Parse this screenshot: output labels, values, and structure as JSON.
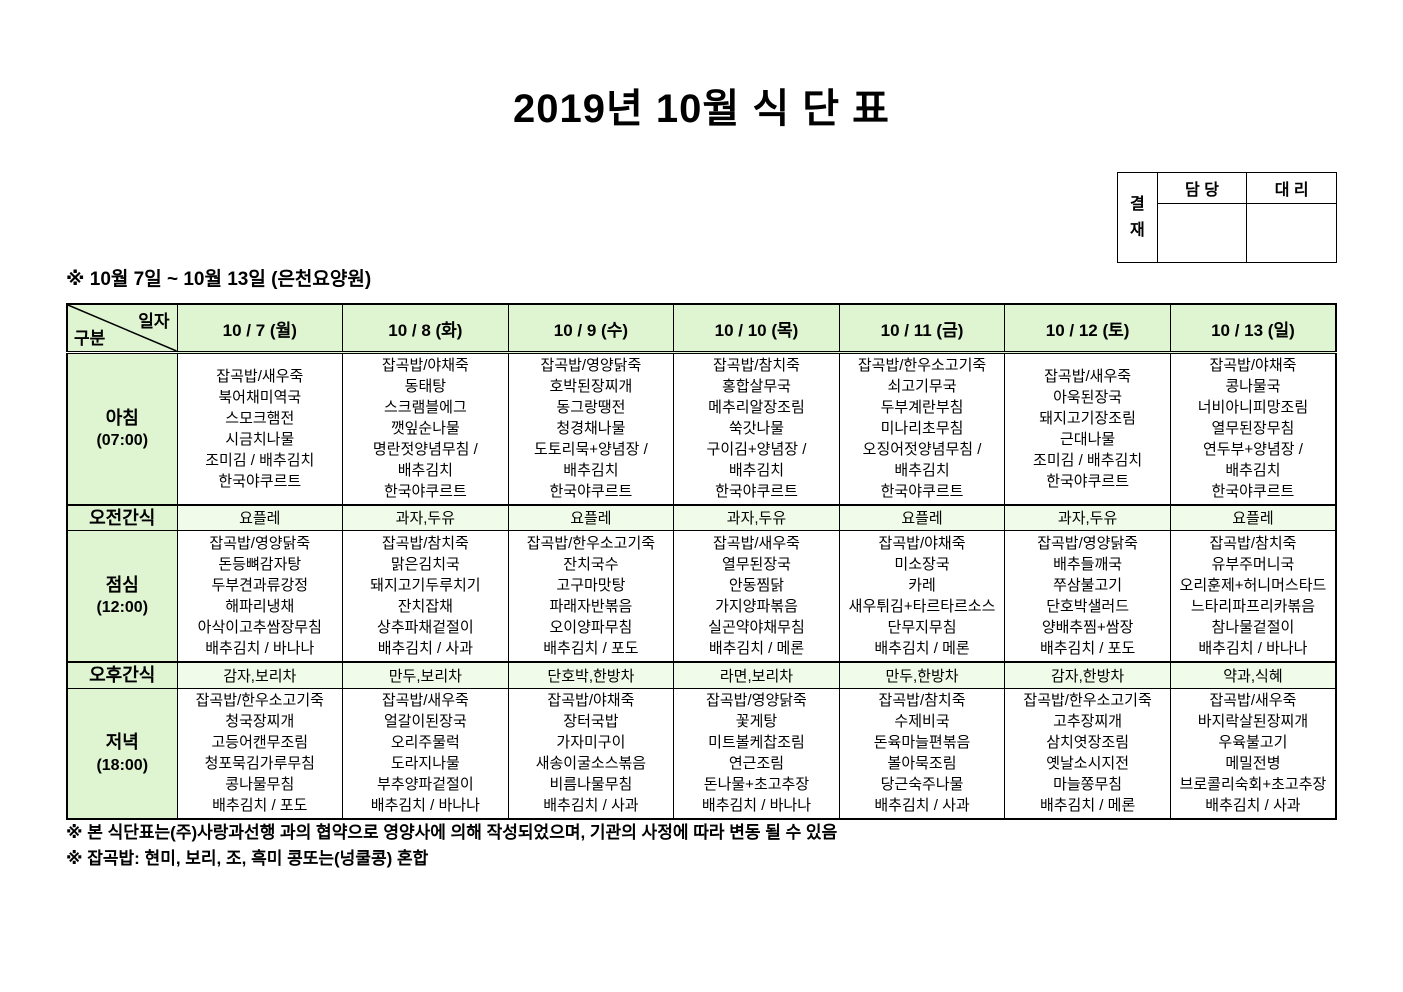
{
  "title": "2019년  10월  식  단  표",
  "approval": {
    "label": "결\n재",
    "columns": [
      "담 당",
      "대 리"
    ]
  },
  "subtitle": "※  10월 7일 ~ 10월 13일 (은천요양원)",
  "corner": {
    "top": "일자",
    "bottom": "구분"
  },
  "days": [
    "10 / 7 (월)",
    "10 / 8 (화)",
    "10 / 9 (수)",
    "10 / 10 (목)",
    "10 / 11 (금)",
    "10 / 12 (토)",
    "10 / 13 (일)"
  ],
  "colors": {
    "header_green": "#dff5d2",
    "snack_tint": "#f0fbe9"
  },
  "rows": [
    {
      "id": "breakfast",
      "kind": "meal",
      "label": "아침",
      "time": "(07:00)",
      "menus": [
        [
          "잡곡밥/새우죽",
          "북어채미역국",
          "스모크햄전",
          "시금치나물",
          "조미김 / 배추김치",
          "한국야쿠르트"
        ],
        [
          "잡곡밥/야채죽",
          "동태탕",
          "스크램블에그",
          "깻잎순나물",
          "명란젓양념무침 /",
          "배추김치",
          "한국야쿠르트"
        ],
        [
          "잡곡밥/영양닭죽",
          "호박된장찌개",
          "동그랑땡전",
          "청경채나물",
          "도토리묵+양념장 /",
          "배추김치",
          "한국야쿠르트"
        ],
        [
          "잡곡밥/참치죽",
          "홍합살무국",
          "메추리알장조림",
          "쑥갓나물",
          "구이김+양념장 /",
          "배추김치",
          "한국야쿠르트"
        ],
        [
          "잡곡밥/한우소고기죽",
          "쇠고기무국",
          "두부계란부침",
          "미나리초무침",
          "오징어젓양념무침 /",
          "배추김치",
          "한국야쿠르트"
        ],
        [
          "잡곡밥/새우죽",
          "아욱된장국",
          "돼지고기장조림",
          "근대나물",
          "조미김 / 배추김치",
          "한국야쿠르트"
        ],
        [
          "잡곡밥/야채죽",
          "콩나물국",
          "너비아니피망조림",
          "열무된장무침",
          "연두부+양념장 /",
          "배추김치",
          "한국야쿠르트"
        ]
      ]
    },
    {
      "id": "morning-snack",
      "kind": "snack",
      "label": "오전간식",
      "items": [
        "요플레",
        "과자,두유",
        "요플레",
        "과자,두유",
        "요플레",
        "과자,두유",
        "요플레"
      ]
    },
    {
      "id": "lunch",
      "kind": "meal",
      "label": "점심",
      "time": "(12:00)",
      "menus": [
        [
          "잡곡밥/영양닭죽",
          "돈등뼈감자탕",
          "두부견과류강정",
          "해파리냉채",
          "아삭이고추쌈장무침",
          "배추김치 / 바나나"
        ],
        [
          "잡곡밥/참치죽",
          "맑은김치국",
          "돼지고기두루치기",
          "잔치잡채",
          "상추파채겉절이",
          "배추김치 / 사과"
        ],
        [
          "잡곡밥/한우소고기죽",
          "잔치국수",
          "고구마맛탕",
          "파래자반볶음",
          "오이양파무침",
          "배추김치 / 포도"
        ],
        [
          "잡곡밥/새우죽",
          "열무된장국",
          "안동찜닭",
          "가지양파볶음",
          "실곤약야채무침",
          "배추김치 / 메론"
        ],
        [
          "잡곡밥/야채죽",
          "미소장국",
          "카레",
          "새우튀김+타르타르소스",
          "단무지무침",
          "배추김치 / 메론"
        ],
        [
          "잡곡밥/영양닭죽",
          "배추들깨국",
          "쭈삼불고기",
          "단호박샐러드",
          "양배추찜+쌈장",
          "배추김치 / 포도"
        ],
        [
          "잡곡밥/참치죽",
          "유부주머니국",
          "오리훈제+허니머스타드",
          "느타리파프리카볶음",
          "참나물겉절이",
          "배추김치 / 바나나"
        ]
      ]
    },
    {
      "id": "afternoon-snack",
      "kind": "snack",
      "label": "오후간식",
      "items": [
        "감자,보리차",
        "만두,보리차",
        "단호박,한방차",
        "라면,보리차",
        "만두,한방차",
        "감자,한방차",
        "약과,식혜"
      ]
    },
    {
      "id": "dinner",
      "kind": "meal",
      "label": "저녁",
      "time": "(18:00)",
      "menus": [
        [
          "잡곡밥/한우소고기죽",
          "청국장찌개",
          "고등어캔무조림",
          "청포묵김가루무침",
          "콩나물무침",
          "배추김치 / 포도"
        ],
        [
          "잡곡밥/새우죽",
          "얼갈이된장국",
          "오리주물럭",
          "도라지나물",
          "부추양파겉절이",
          "배추김치 / 바나나"
        ],
        [
          "잡곡밥/야채죽",
          "장터국밥",
          "가자미구이",
          "새송이굴소스볶음",
          "비름나물무침",
          "배추김치 / 사과"
        ],
        [
          "잡곡밥/영양닭죽",
          "꽃게탕",
          "미트볼케찹조림",
          "연근조림",
          "돈나물+초고추장",
          "배추김치 / 바나나"
        ],
        [
          "잡곡밥/참치죽",
          "수제비국",
          "돈육마늘편볶음",
          "볼아묵조림",
          "당근숙주나물",
          "배추김치 / 사과"
        ],
        [
          "잡곡밥/한우소고기죽",
          "고추장찌개",
          "삼치엿장조림",
          "옛날소시지전",
          "마늘쫑무침",
          "배추김치 / 메론"
        ],
        [
          "잡곡밥/새우죽",
          "바지락살된장찌개",
          "우육불고기",
          "메밀전병",
          "브로콜리숙회+초고추장",
          "배추김치 / 사과"
        ]
      ]
    }
  ],
  "notes": [
    "※  본 식단표는(주)사랑과선행 과의 협약으로 영양사에 의해 작성되었으며, 기관의 사정에 따라 변동 될 수 있음",
    "※  잡곡밥: 현미, 보리, 조, 흑미 콩또는(넝쿨콩) 혼합"
  ]
}
